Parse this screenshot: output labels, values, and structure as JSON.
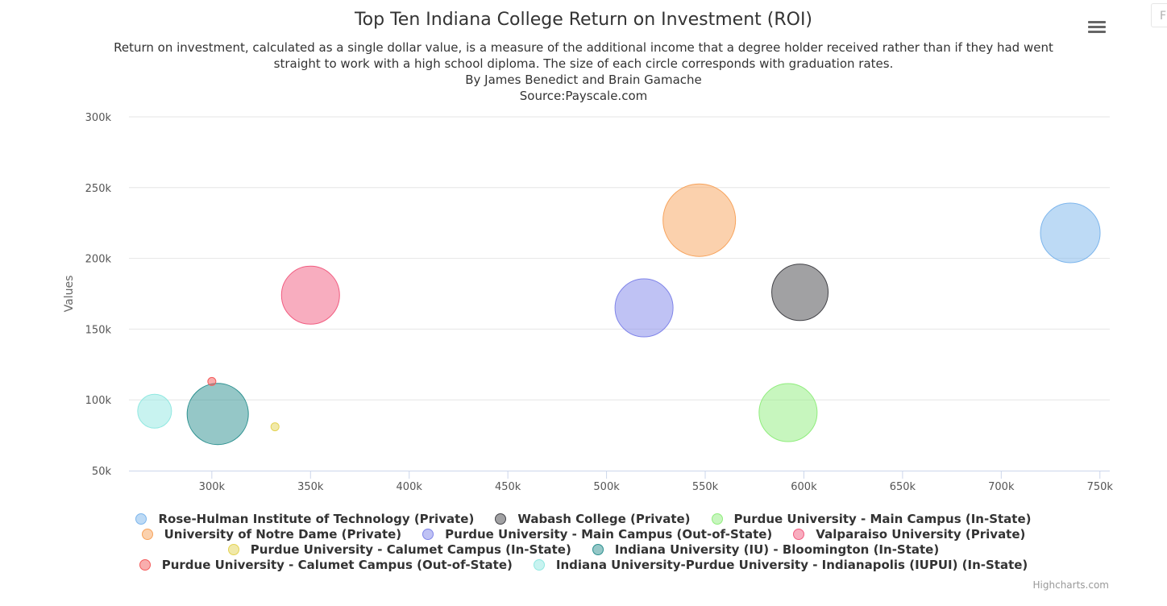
{
  "chart_data": {
    "type": "scatter",
    "title": "Top Ten Indiana College Return on Investment (ROI)",
    "subtitle_lines": [
      "Return on investment, calculated as a single dollar value, is a measure of the additional income that a degree holder received rather than if they had went",
      "straight to work with a high school diploma. The size of each circle corresponds with graduation rates.",
      "By James Benedict and Brain Gamache",
      "Source:Payscale.com"
    ],
    "xlabel": "",
    "ylabel": "Values",
    "xlim": [
      258000,
      755000
    ],
    "ylim": [
      50000,
      300000
    ],
    "x_ticks": [
      300000,
      350000,
      400000,
      450000,
      500000,
      550000,
      600000,
      650000,
      700000,
      750000
    ],
    "x_tick_labels": [
      "300k",
      "350k",
      "400k",
      "450k",
      "500k",
      "550k",
      "600k",
      "650k",
      "700k",
      "750k"
    ],
    "y_ticks": [
      50000,
      100000,
      150000,
      200000,
      250000,
      300000
    ],
    "y_tick_labels": [
      "50k",
      "100k",
      "150k",
      "200k",
      "250k",
      "300k"
    ],
    "grid": true,
    "legend_position": "bottom",
    "series": [
      {
        "name": "Rose-Hulman Institute of Technology (Private)",
        "x": 735000,
        "y": 218000,
        "size": 37,
        "color": "#7cb5ec"
      },
      {
        "name": "Wabash College (Private)",
        "x": 598000,
        "y": 176000,
        "size": 35,
        "color": "#434348"
      },
      {
        "name": "Purdue University - Main Campus (In-State)",
        "x": 592000,
        "y": 91000,
        "size": 36,
        "color": "#90ed7d"
      },
      {
        "name": "University of Notre Dame (Private)",
        "x": 547000,
        "y": 227000,
        "size": 45,
        "color": "#f7a35c"
      },
      {
        "name": "Purdue University - Main Campus (Out-of-State)",
        "x": 519000,
        "y": 165000,
        "size": 36,
        "color": "#8085e9"
      },
      {
        "name": "Valparaiso University (Private)",
        "x": 350000,
        "y": 174000,
        "size": 36,
        "color": "#f15c80"
      },
      {
        "name": "Purdue University - Calumet Campus (In-State)",
        "x": 332000,
        "y": 81000,
        "size": 5,
        "color": "#e4d354"
      },
      {
        "name": "Indiana University (IU) - Bloomington (In-State)",
        "x": 303000,
        "y": 90000,
        "size": 38,
        "color": "#2b908f"
      },
      {
        "name": "Purdue University - Calumet Campus (Out-of-State)",
        "x": 300000,
        "y": 113000,
        "size": 5,
        "color": "#f45b5b"
      },
      {
        "name": "Indiana University-Purdue University - Indianapolis (IUPUI) (In-State)",
        "x": 271000,
        "y": 92000,
        "size": 21,
        "color": "#91e8e1"
      }
    ]
  },
  "legend_rows": [
    [
      0,
      1,
      2
    ],
    [
      3,
      4,
      5
    ],
    [
      6,
      7
    ],
    [
      8,
      9
    ]
  ],
  "toolbar": {
    "menu_icon": "hamburger-menu-icon",
    "corner_fragment": "F"
  },
  "credits": "Highcharts.com"
}
